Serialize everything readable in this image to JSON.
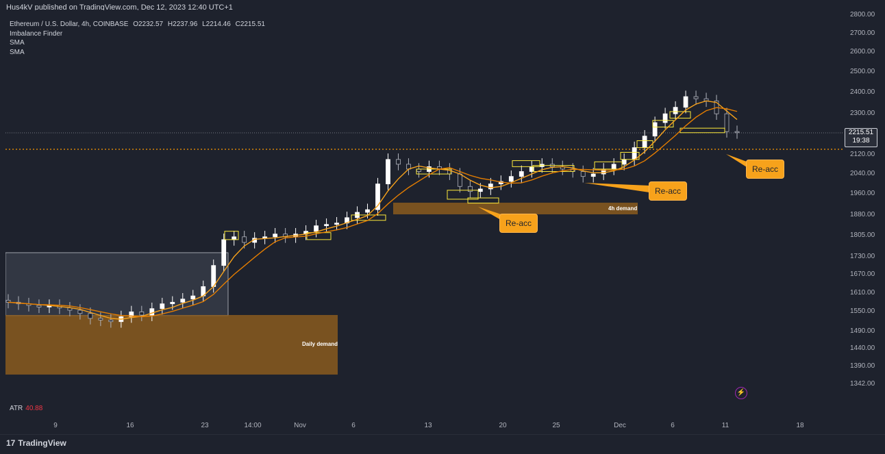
{
  "header": {
    "published": "Hus4kV published on TradingView.com, Dec 12, 2023 12:40 UTC+1"
  },
  "legend": {
    "symbol": "Ethereum / U.S. Dollar, 4h, COINBASE",
    "o_label": "O",
    "o": "2232.57",
    "h_label": "H",
    "h": "2237.96",
    "l_label": "L",
    "l": "2214.46",
    "c_label": "C",
    "c": "2215.51",
    "indicators": [
      "Imbalance Finder",
      "SMA",
      "SMA"
    ]
  },
  "atr": {
    "label": "ATR",
    "value": "40.88"
  },
  "current_price": {
    "price": "2215.51",
    "countdown": "19:38"
  },
  "annotations": {
    "callouts": [
      "Re-acc",
      "Re-acc",
      "Re-acc"
    ],
    "zones": [
      "Daily demand",
      "4h demand"
    ]
  },
  "footer": {
    "brand": "TradingView"
  },
  "colors": {
    "background": "#1e222d",
    "candle_up": "#ffffff",
    "candle_down": "#b2b5be",
    "sma_fast": "#f7a21b",
    "sma_slow": "#e67e00",
    "demand_zone": "#8a5a1e",
    "imbalance_box": "#ffeb3b",
    "callout": "#f7a21b",
    "dotted_level": "#ff9800"
  },
  "chart_data": {
    "type": "candlestick",
    "title": "Ethereum / U.S. Dollar, 4h, COINBASE",
    "ylim": [
      1290,
      2820
    ],
    "y_scale": "log",
    "y_ticks": [
      2800,
      2700,
      2600,
      2500,
      2400,
      2300,
      2120,
      2040,
      1960,
      1880,
      1805,
      1730,
      1670,
      1610,
      1550,
      1490,
      1440,
      1390,
      1342
    ],
    "x_ticks": [
      "9",
      "16",
      "23",
      "14:00",
      "Nov",
      "6",
      "13",
      "20",
      "25",
      "Dec",
      "6",
      "11",
      "18"
    ],
    "series": [
      {
        "name": "Close",
        "values": [
          1580,
          1575,
          1570,
          1565,
          1570,
          1562,
          1555,
          1545,
          1530,
          1525,
          1520,
          1535,
          1550,
          1540,
          1560,
          1575,
          1580,
          1590,
          1600,
          1630,
          1700,
          1790,
          1800,
          1780,
          1795,
          1800,
          1810,
          1800,
          1810,
          1820,
          1840,
          1845,
          1850,
          1870,
          1890,
          1900,
          2000,
          2100,
          2080,
          2060,
          2050,
          2070,
          2060,
          2040,
          1990,
          1970,
          1980,
          2000,
          2010,
          2030,
          2050,
          2070,
          2080,
          2070,
          2060,
          2050,
          2030,
          2040,
          2060,
          2080,
          2100,
          2150,
          2200,
          2260,
          2300,
          2330,
          2380,
          2370,
          2360,
          2300,
          2220,
          2215
        ]
      }
    ],
    "levels": {
      "current_price": 2215.51,
      "dotted_level": 2140
    },
    "zones": [
      {
        "label": "Daily demand",
        "from": 1385,
        "to": 1520
      },
      {
        "label": "4h demand",
        "from": 1910,
        "to": 1945
      }
    ]
  }
}
